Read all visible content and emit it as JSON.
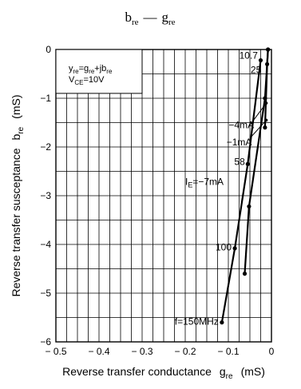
{
  "title": {
    "main_b": "b",
    "main_b_sub": "re",
    "dash": "—",
    "main_g": "g",
    "main_g_sub": "re"
  },
  "chart_data": {
    "type": "line",
    "xlim": [
      -0.5,
      0
    ],
    "ylim": [
      -6,
      0
    ],
    "x_ticks": [
      -0.5,
      -0.4,
      -0.3,
      -0.2,
      -0.1,
      0
    ],
    "x_tick_labels": [
      "− 0.5",
      "− 0.4",
      "− 0.3",
      "− 0.2",
      "− 0.1",
      "0"
    ],
    "y_ticks": [
      0,
      -1,
      -2,
      -3,
      -4,
      -5,
      -6
    ],
    "y_tick_labels": [
      "0",
      "−1",
      "−2",
      "−3",
      "−4",
      "−5",
      "−6"
    ],
    "xlabel": {
      "text": "Reverse transfer conductance",
      "sym": "g",
      "sub": "re",
      "unit": "(mS)"
    },
    "ylabel": {
      "text": "Reverse transfer susceptance",
      "sym": "b",
      "sub": "re",
      "unit": "(mS)"
    },
    "grid": true,
    "legend_box": {
      "line1": {
        "y": "y",
        "ysub": "re",
        "eq": "=g",
        "gsub": "re",
        "plus": "+jb",
        "bsub": "re"
      },
      "line2": {
        "v": "V",
        "vsub": "CE",
        "val": "=10V"
      }
    },
    "series": [
      {
        "name": "I",
        "name_sub": "E",
        "name_val": "=−7mA",
        "points": [
          [
            -0.115,
            -5.6
          ],
          [
            -0.085,
            -4.08
          ],
          [
            -0.055,
            -2.35
          ],
          [
            -0.025,
            -0.22
          ]
        ]
      },
      {
        "name": "−1mA",
        "points": [
          [
            -0.062,
            -4.6
          ],
          [
            -0.052,
            -3.22
          ],
          [
            -0.015,
            -1.0
          ],
          [
            -0.008,
            0.0
          ]
        ]
      },
      {
        "name": "−4mA",
        "points": [
          [
            -0.015,
            -1.6
          ],
          [
            -0.01,
            -0.3
          ],
          [
            -0.008,
            0.0
          ]
        ]
      }
    ],
    "annotations": [
      {
        "text": "10.7",
        "x": -0.026,
        "y": -0.12
      },
      {
        "text": "25",
        "x": -0.018,
        "y": -0.42
      },
      {
        "text": "58",
        "x": -0.056,
        "y": -2.3
      },
      {
        "text": "100",
        "x": -0.087,
        "y": -4.06
      },
      {
        "text": "f=150MHz",
        "x": -0.117,
        "y": -5.58
      },
      {
        "text": "−4mA",
        "x": -0.035,
        "y": -1.55
      },
      {
        "text": "−1mA",
        "x": -0.04,
        "y": -1.9
      }
    ],
    "colors": {
      "line": "#000000",
      "grid": "#000000"
    }
  }
}
